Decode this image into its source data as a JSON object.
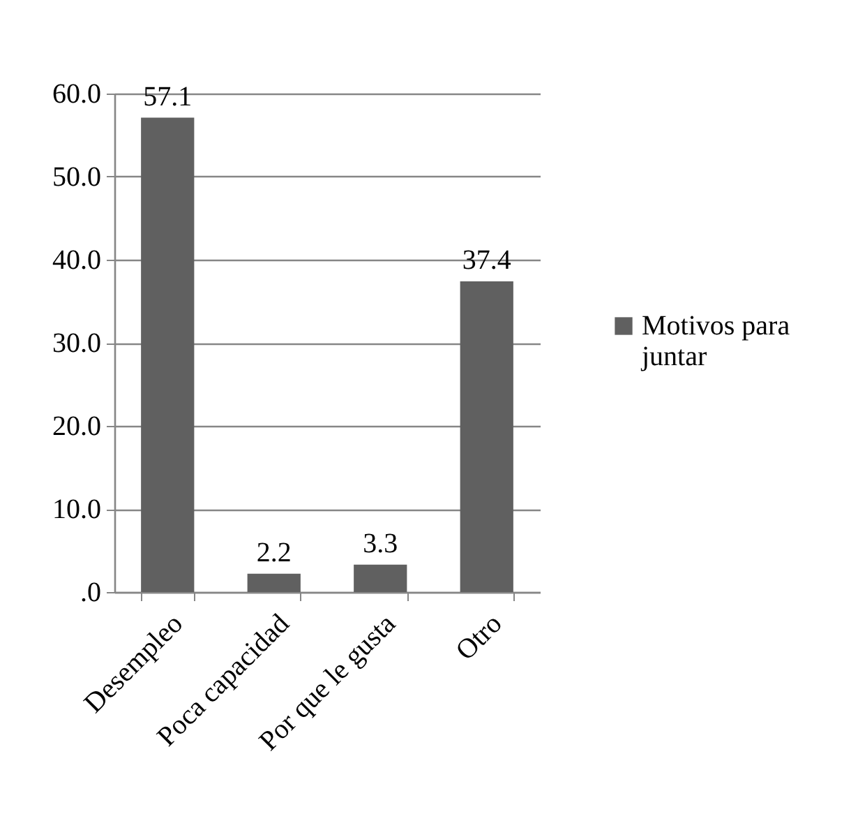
{
  "chart_data": {
    "type": "bar",
    "categories": [
      "Desempleo",
      "Poca capacidad",
      "Por que le gusta",
      "Otro"
    ],
    "series": [
      {
        "name": "Motivos para juntar",
        "color": "#606060",
        "values": [
          57.1,
          2.2,
          3.3,
          37.4
        ]
      }
    ],
    "ylim": [
      0,
      60
    ],
    "yticks": [
      {
        "value": 0,
        "label": ".0"
      },
      {
        "value": 10,
        "label": "10.0"
      },
      {
        "value": 20,
        "label": "20.0"
      },
      {
        "value": 30,
        "label": "30.0"
      },
      {
        "value": 40,
        "label": "40.0"
      },
      {
        "value": 50,
        "label": "50.0"
      },
      {
        "value": 60,
        "label": "60.0"
      }
    ],
    "grid": "y",
    "legend": "right",
    "data_labels": true
  }
}
